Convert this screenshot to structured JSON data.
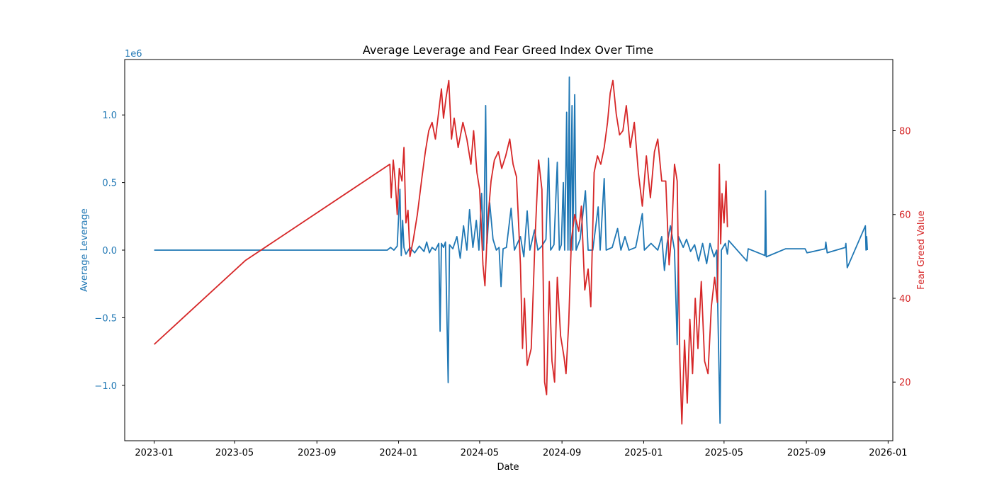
{
  "chart_data": {
    "type": "line",
    "title": "Average Leverage and Fear Greed Index Over Time",
    "xlabel": "Date",
    "x_ticks": [
      "2023-01",
      "2023-05",
      "2023-09",
      "2024-01",
      "2024-05",
      "2024-09",
      "2025-01",
      "2025-05",
      "2025-09",
      "2026-01"
    ],
    "xlim": [
      "2022-11-18",
      "2026-01-08"
    ],
    "left_axis": {
      "label": "Average Leverage",
      "offset_label": "1e6",
      "color": "#1f77b4",
      "ylim": [
        -1.41,
        1.41
      ],
      "ticks": [
        -1.0,
        -0.5,
        0.0,
        0.5,
        1.0
      ],
      "tick_labels": [
        "−1.0",
        "−0.5",
        "0.0",
        "0.5",
        "1.0"
      ]
    },
    "right_axis": {
      "label": "Fear Greed Value",
      "color": "#d62728",
      "ylim": [
        6,
        97
      ],
      "ticks": [
        20,
        40,
        60,
        80
      ],
      "tick_labels": [
        "20",
        "40",
        "60",
        "80"
      ]
    },
    "grid": false,
    "series": [
      {
        "axis": "left",
        "color": "#1f77b4",
        "points": [
          [
            "2023-01-01",
            0.0
          ],
          [
            "2023-12-15",
            0.0
          ],
          [
            "2023-12-20",
            0.02
          ],
          [
            "2023-12-25",
            0.0
          ],
          [
            "2023-12-30",
            0.03
          ],
          [
            "2024-01-03",
            0.45
          ],
          [
            "2024-01-05",
            -0.04
          ],
          [
            "2024-01-07",
            0.22
          ],
          [
            "2024-01-09",
            0.02
          ],
          [
            "2024-01-12",
            -0.03
          ],
          [
            "2024-01-18",
            0.02
          ],
          [
            "2024-01-25",
            -0.02
          ],
          [
            "2024-02-01",
            0.03
          ],
          [
            "2024-02-08",
            -0.01
          ],
          [
            "2024-02-12",
            0.06
          ],
          [
            "2024-02-16",
            -0.02
          ],
          [
            "2024-02-20",
            0.02
          ],
          [
            "2024-02-25",
            0.0
          ],
          [
            "2024-03-01",
            0.05
          ],
          [
            "2024-03-03",
            -0.6
          ],
          [
            "2024-03-05",
            0.05
          ],
          [
            "2024-03-08",
            0.02
          ],
          [
            "2024-03-11",
            0.06
          ],
          [
            "2024-03-15",
            -0.98
          ],
          [
            "2024-03-17",
            0.04
          ],
          [
            "2024-03-22",
            0.01
          ],
          [
            "2024-03-28",
            0.1
          ],
          [
            "2024-04-02",
            -0.06
          ],
          [
            "2024-04-07",
            0.18
          ],
          [
            "2024-04-12",
            0.0
          ],
          [
            "2024-04-16",
            0.3
          ],
          [
            "2024-04-21",
            0.02
          ],
          [
            "2024-04-26",
            0.22
          ],
          [
            "2024-04-30",
            0.0
          ],
          [
            "2024-05-04",
            0.42
          ],
          [
            "2024-05-07",
            0.0
          ],
          [
            "2024-05-10",
            1.07
          ],
          [
            "2024-05-12",
            0.05
          ],
          [
            "2024-05-16",
            0.35
          ],
          [
            "2024-05-21",
            0.08
          ],
          [
            "2024-05-26",
            0.0
          ],
          [
            "2024-05-30",
            0.02
          ],
          [
            "2024-06-02",
            -0.27
          ],
          [
            "2024-06-05",
            0.01
          ],
          [
            "2024-06-10",
            0.02
          ],
          [
            "2024-06-17",
            0.31
          ],
          [
            "2024-06-22",
            0.0
          ],
          [
            "2024-07-01",
            0.1
          ],
          [
            "2024-07-06",
            -0.05
          ],
          [
            "2024-07-11",
            0.29
          ],
          [
            "2024-07-15",
            0.0
          ],
          [
            "2024-07-22",
            0.15
          ],
          [
            "2024-07-27",
            0.0
          ],
          [
            "2024-08-02",
            0.03
          ],
          [
            "2024-08-08",
            0.08
          ],
          [
            "2024-08-12",
            0.68
          ],
          [
            "2024-08-15",
            0.0
          ],
          [
            "2024-08-20",
            0.04
          ],
          [
            "2024-08-25",
            0.65
          ],
          [
            "2024-08-28",
            0.0
          ],
          [
            "2024-08-31",
            0.04
          ],
          [
            "2024-09-03",
            0.5
          ],
          [
            "2024-09-05",
            0.0
          ],
          [
            "2024-09-08",
            1.02
          ],
          [
            "2024-09-10",
            0.0
          ],
          [
            "2024-09-12",
            1.28
          ],
          [
            "2024-09-13",
            0.0
          ],
          [
            "2024-09-16",
            1.07
          ],
          [
            "2024-09-17",
            0.0
          ],
          [
            "2024-09-20",
            1.15
          ],
          [
            "2024-09-22",
            0.0
          ],
          [
            "2024-09-28",
            0.08
          ],
          [
            "2024-10-06",
            0.44
          ],
          [
            "2024-10-10",
            0.0
          ],
          [
            "2024-10-17",
            0.0
          ],
          [
            "2024-10-25",
            0.32
          ],
          [
            "2024-10-28",
            0.0
          ],
          [
            "2024-11-03",
            0.53
          ],
          [
            "2024-11-06",
            0.0
          ],
          [
            "2024-11-15",
            0.02
          ],
          [
            "2024-11-23",
            0.16
          ],
          [
            "2024-11-28",
            0.0
          ],
          [
            "2024-12-04",
            0.1
          ],
          [
            "2024-12-10",
            0.0
          ],
          [
            "2024-12-20",
            0.02
          ],
          [
            "2024-12-30",
            0.27
          ],
          [
            "2025-01-02",
            0.0
          ],
          [
            "2025-01-12",
            0.05
          ],
          [
            "2025-01-22",
            0.0
          ],
          [
            "2025-01-28",
            0.1
          ],
          [
            "2025-02-01",
            -0.15
          ],
          [
            "2025-02-05",
            0.05
          ],
          [
            "2025-02-10",
            0.18
          ],
          [
            "2025-02-16",
            0.0
          ],
          [
            "2025-02-20",
            -0.7
          ],
          [
            "2025-02-22",
            0.1
          ],
          [
            "2025-03-01",
            0.02
          ],
          [
            "2025-03-06",
            0.08
          ],
          [
            "2025-03-12",
            -0.01
          ],
          [
            "2025-03-18",
            0.04
          ],
          [
            "2025-03-24",
            -0.08
          ],
          [
            "2025-03-30",
            0.05
          ],
          [
            "2025-04-05",
            -0.1
          ],
          [
            "2025-04-10",
            0.05
          ],
          [
            "2025-04-16",
            -0.05
          ],
          [
            "2025-04-20",
            0.0
          ],
          [
            "2025-04-25",
            -1.28
          ],
          [
            "2025-04-27",
            0.0
          ],
          [
            "2025-05-03",
            0.05
          ],
          [
            "2025-05-06",
            -0.03
          ],
          [
            "2025-05-08",
            0.07
          ],
          [
            "2025-06-04",
            -0.08
          ],
          [
            "2025-06-06",
            0.01
          ],
          [
            "2025-07-01",
            -0.04
          ],
          [
            "2025-07-02",
            0.44
          ],
          [
            "2025-07-03",
            -0.05
          ],
          [
            "2025-08-01",
            0.01
          ],
          [
            "2025-08-30",
            0.01
          ],
          [
            "2025-09-02",
            -0.02
          ],
          [
            "2025-09-29",
            0.01
          ],
          [
            "2025-09-30",
            0.06
          ],
          [
            "2025-10-02",
            -0.02
          ],
          [
            "2025-10-29",
            0.02
          ],
          [
            "2025-10-30",
            0.05
          ],
          [
            "2025-11-01",
            -0.13
          ],
          [
            "2025-11-28",
            0.18
          ],
          [
            "2025-11-29",
            0.0
          ],
          [
            "2025-11-30",
            0.1
          ],
          [
            "2025-12-01",
            0.0
          ]
        ]
      },
      {
        "axis": "right",
        "color": "#d62728",
        "points": [
          [
            "2023-01-01",
            29
          ],
          [
            "2023-05-17",
            49
          ],
          [
            "2023-12-19",
            72
          ],
          [
            "2023-12-21",
            64
          ],
          [
            "2023-12-24",
            73
          ],
          [
            "2023-12-27",
            68
          ],
          [
            "2023-12-30",
            60
          ],
          [
            "2024-01-02",
            71
          ],
          [
            "2024-01-06",
            68
          ],
          [
            "2024-01-09",
            76
          ],
          [
            "2024-01-12",
            58
          ],
          [
            "2024-01-15",
            61
          ],
          [
            "2024-01-18",
            50
          ],
          [
            "2024-01-23",
            54
          ],
          [
            "2024-01-29",
            60
          ],
          [
            "2024-02-05",
            69
          ],
          [
            "2024-02-10",
            75
          ],
          [
            "2024-02-15",
            80
          ],
          [
            "2024-02-20",
            82
          ],
          [
            "2024-02-25",
            78
          ],
          [
            "2024-03-02",
            86
          ],
          [
            "2024-03-05",
            90
          ],
          [
            "2024-03-08",
            83
          ],
          [
            "2024-03-12",
            88
          ],
          [
            "2024-03-16",
            92
          ],
          [
            "2024-03-20",
            78
          ],
          [
            "2024-03-24",
            83
          ],
          [
            "2024-03-30",
            76
          ],
          [
            "2024-04-06",
            82
          ],
          [
            "2024-04-12",
            78
          ],
          [
            "2024-04-18",
            72
          ],
          [
            "2024-04-22",
            80
          ],
          [
            "2024-04-27",
            70
          ],
          [
            "2024-05-01",
            66
          ],
          [
            "2024-05-06",
            48
          ],
          [
            "2024-05-09",
            43
          ],
          [
            "2024-05-13",
            58
          ],
          [
            "2024-05-18",
            68
          ],
          [
            "2024-05-23",
            73
          ],
          [
            "2024-05-29",
            75
          ],
          [
            "2024-06-03",
            71
          ],
          [
            "2024-06-09",
            74
          ],
          [
            "2024-06-15",
            78
          ],
          [
            "2024-06-20",
            72
          ],
          [
            "2024-06-25",
            69
          ],
          [
            "2024-07-01",
            48
          ],
          [
            "2024-07-04",
            28
          ],
          [
            "2024-07-07",
            40
          ],
          [
            "2024-07-11",
            24
          ],
          [
            "2024-07-17",
            28
          ],
          [
            "2024-07-23",
            55
          ],
          [
            "2024-07-28",
            73
          ],
          [
            "2024-08-02",
            66
          ],
          [
            "2024-08-06",
            20
          ],
          [
            "2024-08-09",
            17
          ],
          [
            "2024-08-13",
            44
          ],
          [
            "2024-08-17",
            25
          ],
          [
            "2024-08-21",
            20
          ],
          [
            "2024-08-25",
            45
          ],
          [
            "2024-08-30",
            31
          ],
          [
            "2024-09-04",
            26
          ],
          [
            "2024-09-07",
            22
          ],
          [
            "2024-09-11",
            34
          ],
          [
            "2024-09-15",
            54
          ],
          [
            "2024-09-20",
            60
          ],
          [
            "2024-09-26",
            56
          ],
          [
            "2024-09-30",
            62
          ],
          [
            "2024-10-05",
            42
          ],
          [
            "2024-10-10",
            47
          ],
          [
            "2024-10-14",
            38
          ],
          [
            "2024-10-19",
            70
          ],
          [
            "2024-10-24",
            74
          ],
          [
            "2024-10-29",
            72
          ],
          [
            "2024-11-03",
            76
          ],
          [
            "2024-11-08",
            82
          ],
          [
            "2024-11-12",
            89
          ],
          [
            "2024-11-16",
            92
          ],
          [
            "2024-11-21",
            84
          ],
          [
            "2024-11-26",
            79
          ],
          [
            "2024-12-01",
            80
          ],
          [
            "2024-12-06",
            86
          ],
          [
            "2024-12-12",
            76
          ],
          [
            "2024-12-18",
            82
          ],
          [
            "2024-12-24",
            70
          ],
          [
            "2024-12-30",
            62
          ],
          [
            "2025-01-05",
            74
          ],
          [
            "2025-01-11",
            64
          ],
          [
            "2025-01-17",
            75
          ],
          [
            "2025-01-22",
            78
          ],
          [
            "2025-01-28",
            68
          ],
          [
            "2025-02-03",
            68
          ],
          [
            "2025-02-08",
            48
          ],
          [
            "2025-02-12",
            56
          ],
          [
            "2025-02-16",
            72
          ],
          [
            "2025-02-20",
            68
          ],
          [
            "2025-02-24",
            25
          ],
          [
            "2025-02-27",
            10
          ],
          [
            "2025-03-03",
            30
          ],
          [
            "2025-03-07",
            15
          ],
          [
            "2025-03-11",
            35
          ],
          [
            "2025-03-15",
            22
          ],
          [
            "2025-03-19",
            40
          ],
          [
            "2025-03-23",
            28
          ],
          [
            "2025-03-28",
            44
          ],
          [
            "2025-04-02",
            25
          ],
          [
            "2025-04-07",
            22
          ],
          [
            "2025-04-12",
            38
          ],
          [
            "2025-04-17",
            45
          ],
          [
            "2025-04-21",
            39
          ],
          [
            "2025-04-24",
            72
          ],
          [
            "2025-04-26",
            53
          ],
          [
            "2025-04-28",
            65
          ],
          [
            "2025-05-01",
            58
          ],
          [
            "2025-05-04",
            68
          ],
          [
            "2025-05-06",
            57
          ]
        ]
      }
    ]
  }
}
